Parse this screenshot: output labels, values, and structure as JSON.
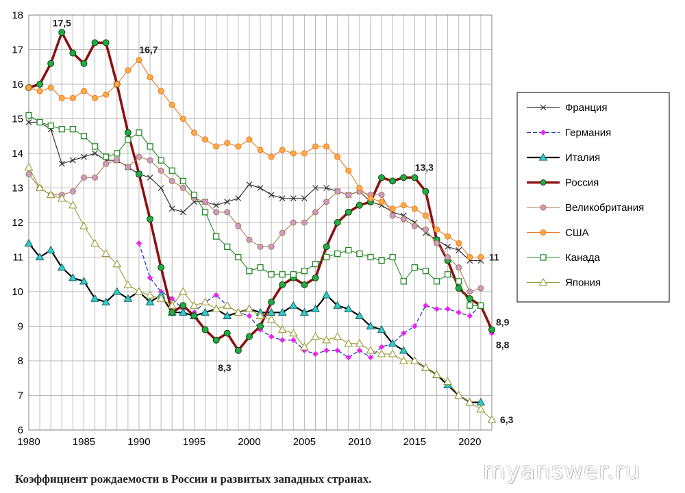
{
  "caption": "Коэффициент рождаемости в России и развитых западных странах.",
  "watermark": "myanswer.ru",
  "chart_data": {
    "type": "line",
    "title": "",
    "xlabel": "",
    "ylabel": "",
    "xlim": [
      1980,
      2022
    ],
    "ylim": [
      6,
      18
    ],
    "x_ticks": [
      1980,
      1985,
      1990,
      1995,
      2000,
      2005,
      2010,
      2015,
      2020
    ],
    "y_ticks": [
      6,
      7,
      8,
      9,
      10,
      11,
      12,
      13,
      14,
      15,
      16,
      17,
      18
    ],
    "grid": true,
    "legend_position": "right",
    "series": [
      {
        "name": "Франция",
        "color": "#333333",
        "marker": "x",
        "width": 1.2,
        "x": [
          1980,
          1981,
          1982,
          1983,
          1984,
          1985,
          1986,
          1987,
          1988,
          1989,
          1990,
          1991,
          1992,
          1993,
          1994,
          1995,
          1996,
          1997,
          1998,
          1999,
          2000,
          2001,
          2002,
          2003,
          2004,
          2005,
          2006,
          2007,
          2008,
          2009,
          2010,
          2011,
          2012,
          2013,
          2014,
          2015,
          2016,
          2017,
          2018,
          2019,
          2020,
          2021
        ],
        "y": [
          14.9,
          14.9,
          14.7,
          13.7,
          13.8,
          13.9,
          14.0,
          13.8,
          13.8,
          13.6,
          13.4,
          13.3,
          13.0,
          12.4,
          12.3,
          12.6,
          12.6,
          12.5,
          12.6,
          12.7,
          13.1,
          13.0,
          12.8,
          12.7,
          12.7,
          12.7,
          13.0,
          13.0,
          12.9,
          12.8,
          12.9,
          12.6,
          12.5,
          12.3,
          12.2,
          12.0,
          11.7,
          11.5,
          11.3,
          11.2,
          10.9,
          10.9
        ]
      },
      {
        "name": "Германия",
        "color": "#ee22ee",
        "marker": "diamond",
        "width": 1.3,
        "dash": true,
        "x": [
          1990,
          1991,
          1992,
          1993,
          1994,
          1995,
          1996,
          1997,
          1998,
          1999,
          2000,
          2001,
          2002,
          2003,
          2004,
          2005,
          2006,
          2007,
          2008,
          2009,
          2010,
          2011,
          2012,
          2013,
          2014,
          2015,
          2016,
          2017,
          2018,
          2019,
          2020,
          2021,
          2022
        ],
        "y": [
          11.4,
          10.4,
          10.0,
          9.8,
          9.5,
          9.4,
          9.7,
          9.9,
          9.6,
          9.4,
          9.3,
          8.9,
          8.7,
          8.6,
          8.6,
          8.3,
          8.2,
          8.3,
          8.3,
          8.1,
          8.3,
          8.1,
          8.4,
          8.5,
          8.8,
          9.0,
          9.6,
          9.5,
          9.5,
          9.4,
          9.3,
          9.6,
          8.8
        ],
        "line_color": "#2233cc"
      },
      {
        "name": "Италия",
        "color": "#000000",
        "marker": "triangle",
        "marker_fill": "#33cccc",
        "width": 2.2,
        "x": [
          1980,
          1981,
          1982,
          1983,
          1984,
          1985,
          1986,
          1987,
          1988,
          1989,
          1990,
          1991,
          1992,
          1993,
          1994,
          1995,
          1996,
          1997,
          1998,
          1999,
          2000,
          2001,
          2002,
          2003,
          2004,
          2005,
          2006,
          2007,
          2008,
          2009,
          2010,
          2011,
          2012,
          2013,
          2014,
          2015,
          2016,
          2017,
          2018,
          2019,
          2020,
          2021
        ],
        "y": [
          11.4,
          11.0,
          11.2,
          10.7,
          10.4,
          10.3,
          9.8,
          9.7,
          10.0,
          9.8,
          10.0,
          9.7,
          9.9,
          9.4,
          9.4,
          9.3,
          9.4,
          9.5,
          9.3,
          9.4,
          9.5,
          9.4,
          9.4,
          9.4,
          9.6,
          9.4,
          9.5,
          9.9,
          9.6,
          9.5,
          9.3,
          9.0,
          8.9,
          8.5,
          8.3,
          8.0,
          7.8,
          7.6,
          7.3,
          7.0,
          6.8,
          6.8
        ]
      },
      {
        "name": "Россия",
        "color": "#8b1111",
        "marker": "circle",
        "marker_fill": "#22aa44",
        "width": 3.6,
        "x": [
          1980,
          1981,
          1982,
          1983,
          1984,
          1985,
          1986,
          1987,
          1988,
          1989,
          1990,
          1991,
          1992,
          1993,
          1994,
          1995,
          1996,
          1997,
          1998,
          1999,
          2000,
          2001,
          2002,
          2003,
          2004,
          2005,
          2006,
          2007,
          2008,
          2009,
          2010,
          2011,
          2012,
          2013,
          2014,
          2015,
          2016,
          2017,
          2018,
          2019,
          2020,
          2021,
          2022
        ],
        "y": [
          15.9,
          16.0,
          16.6,
          17.5,
          16.9,
          16.6,
          17.2,
          17.2,
          16.0,
          14.6,
          13.4,
          12.1,
          10.7,
          9.4,
          9.6,
          9.3,
          8.9,
          8.6,
          8.8,
          8.3,
          8.7,
          9.0,
          9.7,
          10.2,
          10.4,
          10.2,
          10.4,
          11.3,
          12.0,
          12.3,
          12.5,
          12.6,
          13.3,
          13.2,
          13.3,
          13.3,
          12.9,
          11.5,
          10.9,
          10.1,
          9.8,
          9.6,
          8.9
        ]
      },
      {
        "name": "Великобритания",
        "color": "#a87a4a",
        "marker": "circle",
        "marker_fill": "#cc99cc",
        "width": 1.1,
        "x": [
          1980,
          1981,
          1982,
          1983,
          1984,
          1985,
          1986,
          1987,
          1988,
          1989,
          1990,
          1991,
          1992,
          1993,
          1994,
          1995,
          1996,
          1997,
          1998,
          1999,
          2000,
          2001,
          2002,
          2003,
          2004,
          2005,
          2006,
          2007,
          2008,
          2009,
          2010,
          2011,
          2012,
          2013,
          2014,
          2015,
          2016,
          2017,
          2018,
          2019,
          2020,
          2021
        ],
        "y": [
          13.4,
          13.0,
          12.8,
          12.8,
          12.9,
          13.3,
          13.3,
          13.7,
          13.8,
          13.6,
          13.9,
          13.8,
          13.5,
          13.2,
          13.0,
          12.7,
          12.6,
          12.3,
          12.3,
          11.9,
          11.5,
          11.3,
          11.3,
          11.7,
          12.0,
          12.0,
          12.3,
          12.6,
          12.9,
          12.8,
          12.9,
          12.8,
          12.8,
          12.2,
          12.1,
          11.9,
          11.8,
          11.4,
          11.0,
          10.7,
          10.0,
          10.1
        ]
      },
      {
        "name": "США",
        "color": "#ee7722",
        "marker": "circle",
        "marker_fill": "#ffaa44",
        "width": 1.1,
        "x": [
          1980,
          1981,
          1982,
          1983,
          1984,
          1985,
          1986,
          1987,
          1988,
          1989,
          1990,
          1991,
          1992,
          1993,
          1994,
          1995,
          1996,
          1997,
          1998,
          1999,
          2000,
          2001,
          2002,
          2003,
          2004,
          2005,
          2006,
          2007,
          2008,
          2009,
          2010,
          2011,
          2012,
          2013,
          2014,
          2015,
          2016,
          2017,
          2018,
          2019,
          2020,
          2021
        ],
        "y": [
          15.9,
          15.8,
          15.9,
          15.6,
          15.6,
          15.8,
          15.6,
          15.7,
          16.0,
          16.4,
          16.7,
          16.2,
          15.8,
          15.4,
          15.0,
          14.6,
          14.4,
          14.2,
          14.3,
          14.2,
          14.4,
          14.1,
          13.9,
          14.1,
          14.0,
          14.0,
          14.2,
          14.2,
          13.9,
          13.5,
          13.0,
          12.7,
          12.6,
          12.4,
          12.5,
          12.4,
          12.2,
          11.8,
          11.6,
          11.4,
          11.0,
          11.0
        ]
      },
      {
        "name": "Канада",
        "color": "#228822",
        "marker": "square",
        "marker_fill": "#ffffff",
        "width": 1.1,
        "x": [
          1980,
          1981,
          1982,
          1983,
          1984,
          1985,
          1986,
          1987,
          1988,
          1989,
          1990,
          1991,
          1992,
          1993,
          1994,
          1995,
          1996,
          1997,
          1998,
          1999,
          2000,
          2001,
          2002,
          2003,
          2004,
          2005,
          2006,
          2007,
          2008,
          2009,
          2010,
          2011,
          2012,
          2013,
          2014,
          2015,
          2016,
          2017,
          2018,
          2019,
          2020,
          2021
        ],
        "y": [
          15.1,
          14.9,
          14.8,
          14.7,
          14.7,
          14.5,
          14.2,
          13.9,
          14.0,
          14.4,
          14.6,
          14.2,
          13.8,
          13.5,
          13.2,
          12.8,
          12.3,
          11.6,
          11.3,
          11.0,
          10.6,
          10.7,
          10.5,
          10.5,
          10.5,
          10.6,
          10.8,
          11.0,
          11.1,
          11.2,
          11.1,
          11.0,
          10.9,
          11.0,
          10.3,
          10.7,
          10.6,
          10.3,
          10.5,
          10.3,
          9.6,
          9.6
        ]
      },
      {
        "name": "Япония",
        "color": "#999933",
        "marker": "triangle",
        "marker_fill": "#ffffff",
        "width": 1.1,
        "x": [
          1980,
          1981,
          1982,
          1983,
          1984,
          1985,
          1986,
          1987,
          1988,
          1989,
          1990,
          1991,
          1992,
          1993,
          1994,
          1995,
          1996,
          1997,
          1998,
          1999,
          2000,
          2001,
          2002,
          2003,
          2004,
          2005,
          2006,
          2007,
          2008,
          2009,
          2010,
          2011,
          2012,
          2013,
          2014,
          2015,
          2016,
          2017,
          2018,
          2019,
          2020,
          2021,
          2022
        ],
        "y": [
          13.6,
          13.0,
          12.8,
          12.7,
          12.5,
          11.9,
          11.4,
          11.1,
          10.8,
          10.2,
          10.0,
          9.9,
          9.8,
          9.6,
          10.0,
          9.6,
          9.7,
          9.5,
          9.6,
          9.4,
          9.5,
          9.3,
          9.2,
          8.9,
          8.8,
          8.4,
          8.7,
          8.6,
          8.7,
          8.5,
          8.5,
          8.3,
          8.2,
          8.2,
          8.0,
          8.0,
          7.8,
          7.6,
          7.4,
          7.0,
          6.8,
          6.6,
          6.3
        ]
      }
    ],
    "annotations": [
      {
        "text": "17,5",
        "x": 1983,
        "y": 17.5,
        "pos": "above"
      },
      {
        "text": "16,7",
        "x": 1990,
        "y": 16.7,
        "pos": "above-right"
      },
      {
        "text": "13,3",
        "x": 2015,
        "y": 13.3,
        "pos": "above-right"
      },
      {
        "text": "11",
        "x": 2021,
        "y": 11.0,
        "pos": "right"
      },
      {
        "text": "8,9",
        "x": 2022,
        "y": 8.9,
        "pos": "right-up"
      },
      {
        "text": "8,8",
        "x": 2022,
        "y": 8.8,
        "pos": "right-down"
      },
      {
        "text": "8,3",
        "x": 1999,
        "y": 8.3,
        "pos": "below"
      },
      {
        "text": "6,3",
        "x": 2022,
        "y": 6.3,
        "pos": "right"
      }
    ]
  }
}
